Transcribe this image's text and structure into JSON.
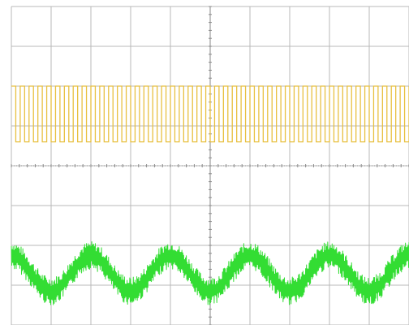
{
  "chart_data": {
    "type": "line",
    "title": "",
    "xlabel": "",
    "ylabel": "",
    "grid": true,
    "grid_divisions": {
      "x": 10,
      "y": 8
    },
    "xlim": [
      0,
      10
    ],
    "ylim": [
      0,
      8
    ],
    "series": [
      {
        "id": "ch1",
        "color": "#e8c040",
        "style": "square wave (dense pulse train)",
        "high_level": 6.0,
        "low_level": 4.6,
        "periods_on_screen": 45
      },
      {
        "id": "ch2",
        "color": "#33dd33",
        "style": "sinusoid with high-frequency ripple",
        "center_level": 1.3,
        "amplitude": 0.45,
        "ripple_amplitude": 0.35,
        "cycles_on_screen": 5,
        "phase_offset": 0.25
      }
    ]
  },
  "colors": {
    "background": "#ffffff",
    "grid": "#b8b8b8",
    "center_axis": "#8a8a8a",
    "ch1": "#e8c040",
    "ch2": "#33dd33"
  }
}
